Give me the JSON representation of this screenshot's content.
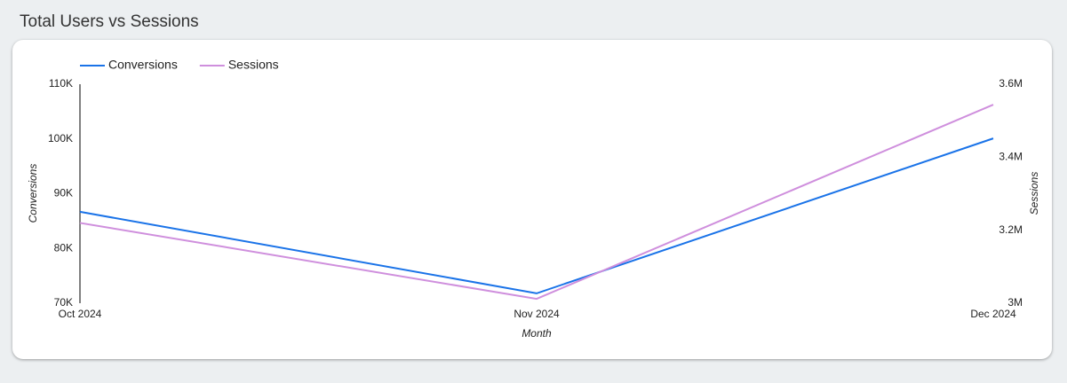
{
  "chart_data": {
    "type": "line",
    "title": "Total Users vs Sessions",
    "x_label": "Month",
    "y_label": "Conversions",
    "y2_label": "Sessions",
    "categories": [
      "Oct 2024",
      "Nov 2024",
      "Dec 2024"
    ],
    "series": [
      {
        "name": "Conversions",
        "color": "#1a73e8",
        "values": [
          86700,
          71800,
          100100
        ]
      },
      {
        "name": "Sessions",
        "color": "#cf8fdd",
        "axis": "y2",
        "values": [
          3220000,
          3012000,
          3544000
        ]
      }
    ],
    "ylim": [
      70000,
      110000
    ],
    "yticks": [
      {
        "value": 70000,
        "label": "70K"
      },
      {
        "value": 80000,
        "label": "80K"
      },
      {
        "value": 90000,
        "label": "90K"
      },
      {
        "value": 100000,
        "label": "100K"
      },
      {
        "value": 110000,
        "label": "110K"
      }
    ],
    "y2lim": [
      3000000,
      3600000
    ],
    "y2ticks": [
      {
        "value": 3000000,
        "label": "3M"
      },
      {
        "value": 3200000,
        "label": "3.2M"
      },
      {
        "value": 3400000,
        "label": "3.4M"
      },
      {
        "value": 3600000,
        "label": "3.6M"
      }
    ],
    "grid": false
  }
}
